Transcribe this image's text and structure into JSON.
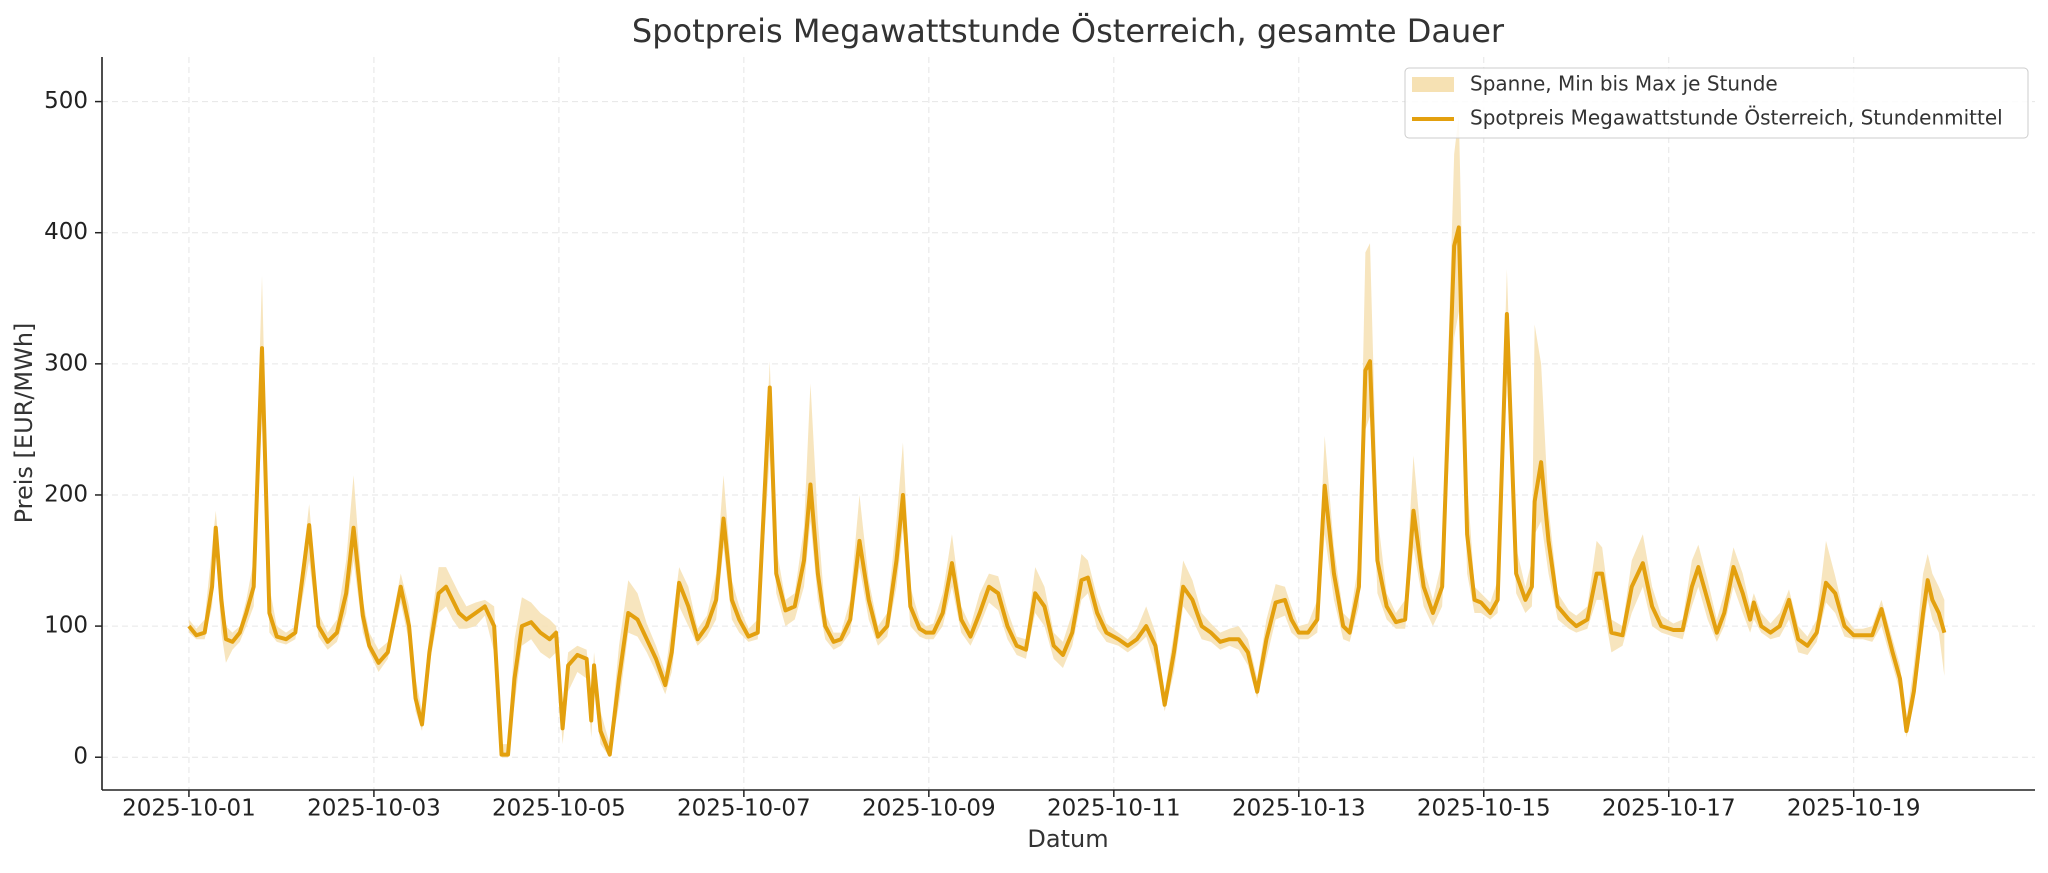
{
  "chart_data": {
    "type": "line",
    "title": "Spotpreis Megawattstunde Österreich, gesamte Dauer",
    "xlabel": "Datum",
    "ylabel": "Preis [EUR/MWh]",
    "xlim": [
      -0.94,
      19.96
    ],
    "ylim": [
      -25,
      534
    ],
    "xticks": [
      {
        "value": 0,
        "label": "2025-10-01"
      },
      {
        "value": 2,
        "label": "2025-10-03"
      },
      {
        "value": 4,
        "label": "2025-10-05"
      },
      {
        "value": 6,
        "label": "2025-10-07"
      },
      {
        "value": 8,
        "label": "2025-10-09"
      },
      {
        "value": 10,
        "label": "2025-10-11"
      },
      {
        "value": 12,
        "label": "2025-10-13"
      },
      {
        "value": 14,
        "label": "2025-10-15"
      },
      {
        "value": 16,
        "label": "2025-10-17"
      },
      {
        "value": 18,
        "label": "2025-10-19"
      }
    ],
    "yticks": [
      0,
      100,
      200,
      300,
      400,
      500
    ],
    "grid": true,
    "legend": "upper right",
    "x": [
      0.0,
      0.08,
      0.17,
      0.25,
      0.29,
      0.35,
      0.4,
      0.47,
      0.55,
      0.62,
      0.7,
      0.79,
      0.87,
      0.95,
      1.05,
      1.15,
      1.3,
      1.4,
      1.5,
      1.6,
      1.7,
      1.78,
      1.88,
      1.95,
      2.05,
      2.15,
      2.29,
      2.38,
      2.45,
      2.52,
      2.6,
      2.7,
      2.78,
      2.85,
      2.92,
      3.0,
      3.1,
      3.2,
      3.3,
      3.38,
      3.45,
      3.52,
      3.6,
      3.7,
      3.8,
      3.9,
      3.97,
      4.04,
      4.1,
      4.2,
      4.3,
      4.35,
      4.38,
      4.45,
      4.55,
      4.65,
      4.75,
      4.85,
      4.95,
      5.05,
      5.15,
      5.22,
      5.3,
      5.4,
      5.5,
      5.6,
      5.7,
      5.78,
      5.87,
      5.95,
      6.05,
      6.15,
      6.28,
      6.35,
      6.45,
      6.55,
      6.65,
      6.72,
      6.8,
      6.88,
      6.97,
      7.05,
      7.15,
      7.25,
      7.35,
      7.45,
      7.55,
      7.65,
      7.72,
      7.8,
      7.9,
      7.97,
      8.05,
      8.15,
      8.25,
      8.35,
      8.45,
      8.55,
      8.65,
      8.75,
      8.85,
      8.95,
      9.05,
      9.15,
      9.25,
      9.35,
      9.45,
      9.55,
      9.65,
      9.72,
      9.82,
      9.92,
      10.05,
      10.15,
      10.25,
      10.35,
      10.45,
      10.55,
      10.65,
      10.75,
      10.85,
      10.95,
      11.05,
      11.15,
      11.25,
      11.35,
      11.45,
      11.55,
      11.65,
      11.75,
      11.85,
      11.92,
      12.0,
      12.1,
      12.2,
      12.28,
      12.38,
      12.48,
      12.55,
      12.65,
      12.72,
      12.77,
      12.85,
      12.95,
      13.05,
      13.15,
      13.24,
      13.35,
      13.45,
      13.55,
      13.68,
      13.73,
      13.82,
      13.9,
      13.97,
      14.07,
      14.15,
      14.25,
      14.35,
      14.45,
      14.52,
      14.55,
      14.62,
      14.7,
      14.8,
      14.92,
      15.0,
      15.12,
      15.22,
      15.28,
      15.38,
      15.5,
      15.6,
      15.72,
      15.82,
      15.92,
      16.05,
      16.15,
      16.25,
      16.32,
      16.42,
      16.52,
      16.6,
      16.7,
      16.8,
      16.88,
      16.92,
      17.0,
      17.1,
      17.2,
      17.3,
      17.4,
      17.5,
      17.6,
      17.7,
      17.8,
      17.9,
      18.0,
      18.1,
      18.2,
      18.3,
      18.42,
      18.5,
      18.57,
      18.65,
      18.75,
      18.8,
      18.85,
      18.92,
      18.98
    ],
    "series": [
      {
        "name": "Spanne, Min bis Max je Stunde",
        "color": "#f6e1b3",
        "low": [
          95,
          90,
          90,
          115,
          160,
          95,
          72,
          82,
          88,
          100,
          115,
          260,
          95,
          88,
          86,
          90,
          150,
          92,
          82,
          88,
          110,
          150,
          95,
          80,
          65,
          75,
          118,
          88,
          35,
          20,
          70,
          110,
          115,
          105,
          98,
          98,
          100,
          108,
          80,
          0,
          0,
          40,
          85,
          90,
          80,
          75,
          80,
          10,
          50,
          65,
          60,
          15,
          50,
          10,
          0,
          40,
          95,
          92,
          80,
          65,
          48,
          65,
          115,
          100,
          85,
          92,
          105,
          160,
          105,
          95,
          88,
          90,
          230,
          125,
          100,
          105,
          130,
          180,
          120,
          90,
          82,
          85,
          95,
          145,
          105,
          85,
          92,
          130,
          175,
          100,
          92,
          90,
          90,
          100,
          130,
          95,
          85,
          100,
          118,
          112,
          90,
          78,
          75,
          110,
          100,
          75,
          68,
          85,
          120,
          125,
          98,
          88,
          85,
          80,
          85,
          92,
          70,
          35,
          65,
          115,
          105,
          90,
          88,
          82,
          85,
          82,
          70,
          45,
          75,
          105,
          108,
          95,
          90,
          90,
          95,
          170,
          120,
          90,
          88,
          115,
          250,
          260,
          125,
          105,
          98,
          98,
          160,
          115,
          100,
          115,
          320,
          340,
          140,
          110,
          110,
          105,
          110,
          290,
          125,
          110,
          115,
          170,
          180,
          140,
          105,
          98,
          95,
          98,
          120,
          120,
          80,
          85,
          110,
          130,
          100,
          95,
          92,
          90,
          115,
          130,
          105,
          88,
          100,
          130,
          110,
          95,
          105,
          95,
          90,
          92,
          105,
          80,
          78,
          88,
          118,
          110,
          92,
          90,
          90,
          88,
          100,
          70,
          50,
          15,
          40,
          95,
          120,
          105,
          95,
          62
        ],
        "high": [
          105,
          98,
          105,
          160,
          188,
          140,
          100,
          95,
          100,
          120,
          150,
          367,
          130,
          100,
          95,
          100,
          193,
          110,
          95,
          105,
          150,
          215,
          120,
          95,
          82,
          88,
          140,
          115,
          60,
          35,
          95,
          145,
          145,
          135,
          125,
          115,
          118,
          120,
          115,
          10,
          10,
          90,
          122,
          118,
          110,
          105,
          100,
          40,
          80,
          85,
          82,
          45,
          80,
          35,
          10,
          85,
          135,
          125,
          102,
          85,
          65,
          100,
          145,
          130,
          98,
          108,
          140,
          215,
          135,
          115,
          98,
          105,
          302,
          160,
          120,
          125,
          175,
          285,
          180,
          110,
          95,
          95,
          120,
          200,
          135,
          100,
          110,
          180,
          240,
          130,
          105,
          100,
          102,
          125,
          170,
          115,
          100,
          125,
          140,
          138,
          112,
          92,
          90,
          145,
          130,
          95,
          88,
          110,
          155,
          150,
          122,
          102,
          95,
          90,
          98,
          115,
          95,
          50,
          95,
          150,
          135,
          110,
          102,
          95,
          98,
          100,
          90,
          60,
          105,
          132,
          130,
          115,
          100,
          102,
          120,
          245,
          160,
          110,
          105,
          150,
          385,
          392,
          185,
          125,
          110,
          120,
          230,
          145,
          120,
          150,
          460,
          490,
          210,
          130,
          125,
          118,
          135,
          372,
          160,
          130,
          150,
          330,
          300,
          190,
          125,
          112,
          108,
          115,
          165,
          160,
          105,
          100,
          150,
          170,
          130,
          108,
          102,
          105,
          150,
          162,
          135,
          105,
          125,
          160,
          140,
          115,
          125,
          110,
          102,
          110,
          128,
          100,
          92,
          105,
          165,
          138,
          108,
          98,
          98,
          100,
          120,
          90,
          70,
          28,
          70,
          140,
          155,
          140,
          130,
          120
        ]
      },
      {
        "name": "Spotpreis Megawattstunde Österreich, Stundenmittel",
        "color": "#e3a00e",
        "values": [
          100,
          93,
          95,
          130,
          175,
          120,
          90,
          88,
          95,
          110,
          130,
          312,
          110,
          92,
          90,
          95,
          177,
          100,
          88,
          95,
          125,
          175,
          108,
          85,
          72,
          80,
          130,
          100,
          45,
          25,
          80,
          125,
          130,
          120,
          110,
          105,
          110,
          115,
          100,
          2,
          2,
          60,
          100,
          103,
          95,
          90,
          95,
          22,
          70,
          78,
          75,
          28,
          70,
          20,
          2,
          60,
          110,
          105,
          90,
          75,
          55,
          80,
          133,
          115,
          90,
          100,
          120,
          182,
          120,
          105,
          92,
          95,
          282,
          140,
          112,
          115,
          150,
          208,
          140,
          100,
          88,
          90,
          105,
          165,
          120,
          92,
          100,
          150,
          200,
          115,
          98,
          95,
          95,
          110,
          148,
          105,
          92,
          110,
          130,
          125,
          100,
          85,
          82,
          125,
          115,
          85,
          78,
          95,
          135,
          137,
          110,
          95,
          90,
          85,
          90,
          100,
          85,
          40,
          80,
          130,
          120,
          100,
          95,
          88,
          90,
          90,
          80,
          50,
          90,
          118,
          120,
          105,
          95,
          95,
          105,
          207,
          140,
          100,
          95,
          130,
          295,
          302,
          150,
          115,
          103,
          105,
          188,
          130,
          110,
          130,
          390,
          404,
          170,
          120,
          118,
          110,
          120,
          338,
          140,
          120,
          130,
          195,
          225,
          165,
          115,
          105,
          100,
          105,
          140,
          140,
          95,
          93,
          130,
          148,
          115,
          100,
          97,
          97,
          130,
          145,
          120,
          95,
          110,
          145,
          125,
          105,
          118,
          100,
          95,
          100,
          120,
          90,
          85,
          95,
          133,
          125,
          100,
          93,
          93,
          93,
          113,
          80,
          60,
          20,
          50,
          110,
          135,
          120,
          110,
          95
        ]
      }
    ]
  }
}
